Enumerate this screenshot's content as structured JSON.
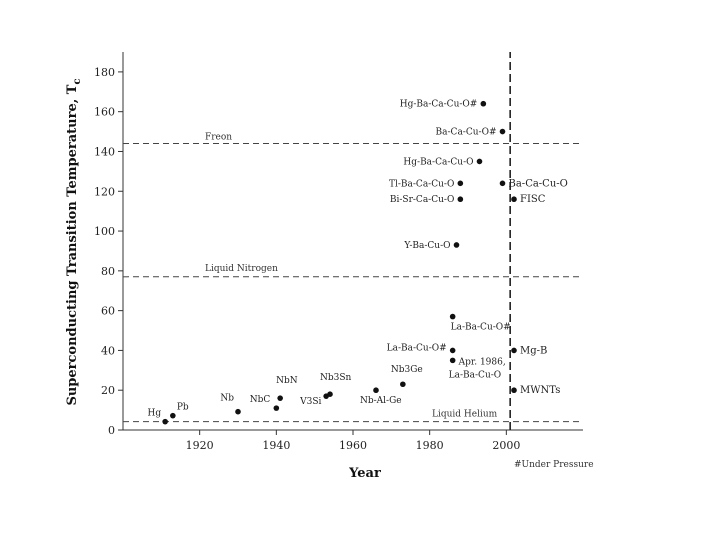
{
  "chart_data": {
    "type": "scatter",
    "title": "",
    "xlabel": "Year",
    "ylabel": "Superconducting Transition Temperature, T",
    "ylabel_sub": "c",
    "xlim": [
      1900,
      2020
    ],
    "ylim": [
      0,
      190
    ],
    "x_ticks": [
      1920,
      1940,
      1960,
      1980,
      2000
    ],
    "y_ticks": [
      0,
      20,
      40,
      60,
      80,
      100,
      120,
      140,
      160,
      180
    ],
    "grid": false,
    "reference_lines": [
      {
        "label": "Freon",
        "y": 144
      },
      {
        "label": "Liquid Nitrogen",
        "y": 77
      },
      {
        "label": "Liquid Helium",
        "y": 4.2
      }
    ],
    "vertical_line": {
      "x": 2001
    },
    "footnote": "#Under Pressure",
    "points": [
      {
        "label": "Hg",
        "x": 1911,
        "y": 4.2
      },
      {
        "label": "Pb",
        "x": 1913,
        "y": 7.2
      },
      {
        "label": "Nb",
        "x": 1930,
        "y": 9.2
      },
      {
        "label": "NbC",
        "x": 1940,
        "y": 11
      },
      {
        "label": "NbN",
        "x": 1941,
        "y": 16
      },
      {
        "label": "V3Si",
        "x": 1953,
        "y": 17
      },
      {
        "label": "Nb3Sn",
        "x": 1954,
        "y": 18
      },
      {
        "label": "Nb-Al-Ge",
        "x": 1966,
        "y": 20
      },
      {
        "label": "Nb3Ge",
        "x": 1973,
        "y": 23
      },
      {
        "label": "La-Ba-Cu-O#",
        "x": 1986,
        "y": 57
      },
      {
        "label": "La-Ba-Cu-O#",
        "x": 1986,
        "y": 40
      },
      {
        "label": "Apr. 1986, La-Ba-Cu-O",
        "x": 1986,
        "y": 35
      },
      {
        "label": "Y-Ba-Cu-O",
        "x": 1987,
        "y": 93
      },
      {
        "label": "Bi-Sr-Ca-Cu-O",
        "x": 1988,
        "y": 116
      },
      {
        "label": "Tl-Ba-Ca-Cu-O",
        "x": 1988,
        "y": 124
      },
      {
        "label": "Hg-Ba-Ca-Cu-O",
        "x": 1993,
        "y": 135
      },
      {
        "label": "Hg-Ba-Ca-Cu-O#",
        "x": 1994,
        "y": 164
      },
      {
        "label": "Ba-Ca-Cu-O#",
        "x": 1999,
        "y": 150
      },
      {
        "label": "Ba-Ca-Cu-O",
        "x": 1999,
        "y": 124
      },
      {
        "label": "FISC",
        "x": 2002,
        "y": 116
      },
      {
        "label": "Mg-B",
        "x": 2002,
        "y": 40
      },
      {
        "label": "MWNTs",
        "x": 2002,
        "y": 20
      }
    ]
  }
}
